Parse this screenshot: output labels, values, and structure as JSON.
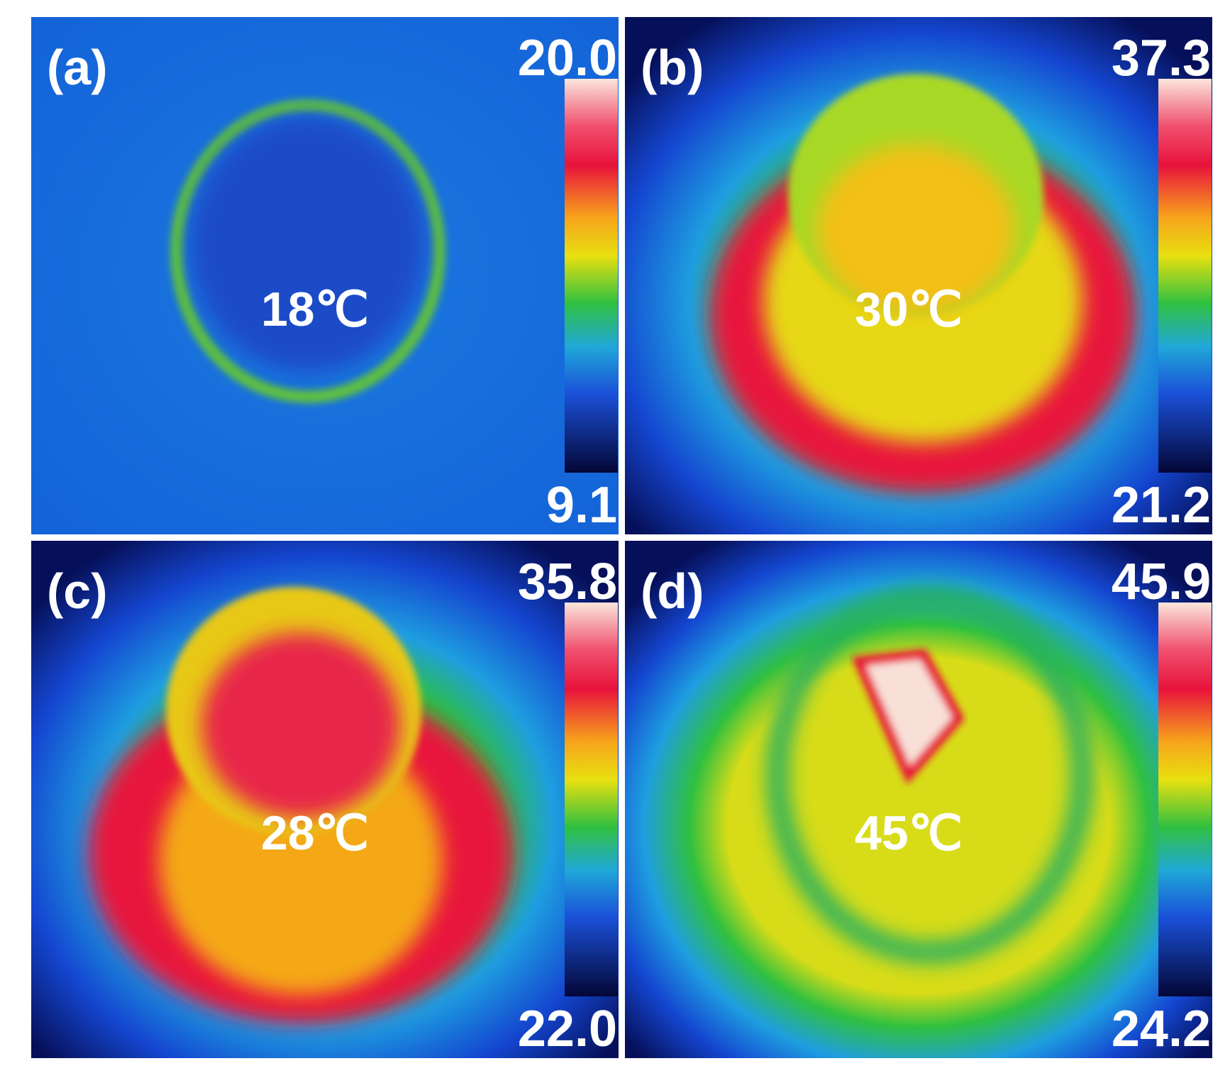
{
  "panels": [
    {
      "label": "(a)",
      "max": "20.0",
      "min": "9.1",
      "center": "18℃"
    },
    {
      "label": "(b)",
      "max": "37.3",
      "min": "21.2",
      "center": "30℃"
    },
    {
      "label": "(c)",
      "max": "35.8",
      "min": "22.0",
      "center": "28℃"
    },
    {
      "label": "(d)",
      "max": "45.9",
      "min": "24.2",
      "center": "45℃"
    }
  ]
}
